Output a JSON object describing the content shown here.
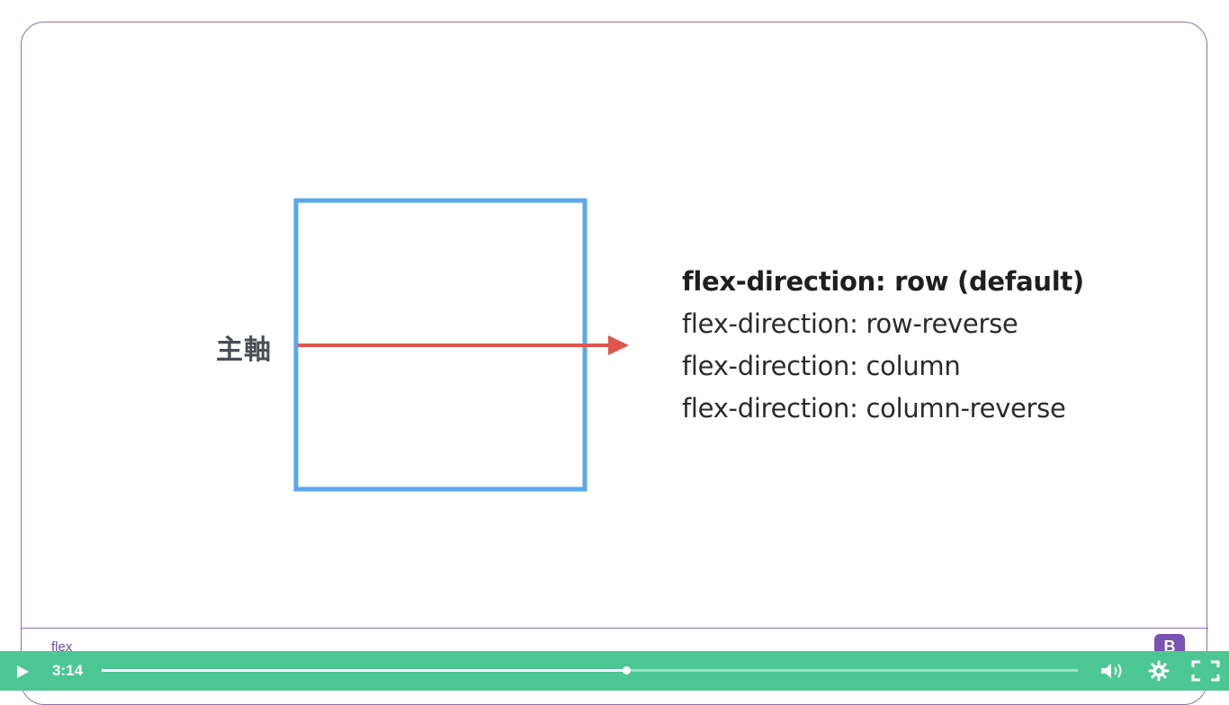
{
  "slide": {
    "axis_label": "主軸",
    "options": [
      "flex-direction: row (default)",
      "flex-direction: row-reverse",
      "flex-direction: column",
      "flex-direction: column-reverse"
    ],
    "active_option_index": 0,
    "footer_label": "flex",
    "logo_letter": "B"
  },
  "colors": {
    "box": "#5ba7ee",
    "arrow": "#e0554f",
    "frame": "#8a72b3",
    "control_bar": "#4cc793",
    "logo": "#7952b3"
  },
  "player": {
    "current_time": "3:14",
    "progress": 0.537,
    "icons": [
      "play-icon",
      "volume-icon",
      "settings-icon",
      "fullscreen-icon"
    ]
  }
}
